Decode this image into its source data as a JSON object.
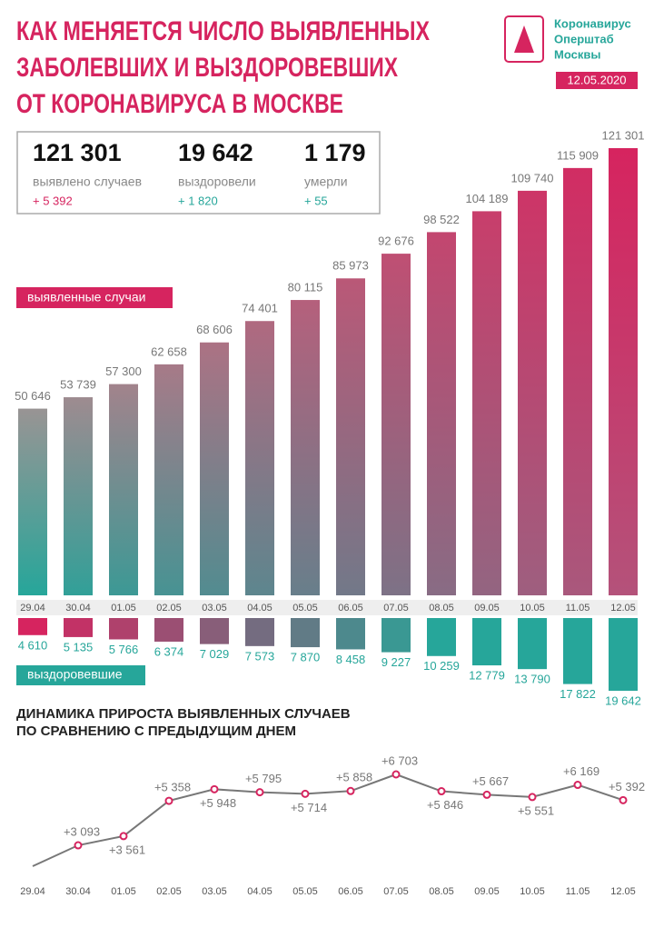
{
  "header": {
    "title": [
      "КАК МЕНЯЕТСЯ ЧИСЛО ВЫЯВЛЕННЫХ",
      "ЗАБОЛЕВШИХ И ВЫЗДОРОВЕВШИХ",
      "ОТ КОРОНАВИРУСА В МОСКВЕ"
    ],
    "org": [
      "Коронавирус",
      "Оперштаб",
      "Москвы"
    ],
    "date": "12.05.2020"
  },
  "stats": [
    {
      "value": "121 301",
      "caption": "выявлено случаев",
      "delta": "+ 5 392"
    },
    {
      "value": "19 642",
      "caption": "выздоровели",
      "delta": "+ 1 820"
    },
    {
      "value": "1 179",
      "caption": "умерли",
      "delta": "+ 55"
    }
  ],
  "chart_data": [
    {
      "type": "bar",
      "categories": [
        "29.04",
        "30.04",
        "01.05",
        "02.05",
        "03.05",
        "04.05",
        "05.05",
        "06.05",
        "07.05",
        "08.05",
        "09.05",
        "10.05",
        "11.05",
        "12.05"
      ],
      "series": [
        {
          "name": "выявленные случаи",
          "color": "#d6245f",
          "values": [
            50646,
            53739,
            57300,
            62658,
            68606,
            74401,
            80115,
            85973,
            92676,
            98522,
            104189,
            109740,
            115909,
            121301
          ],
          "value_labels": [
            "50 646",
            "53 739",
            "57 300",
            "62 658",
            "68 606",
            "74 401",
            "80 115",
            "85 973",
            "92 676",
            "98 522",
            "104 189",
            "109 740",
            "115 909",
            "121 301"
          ]
        },
        {
          "name": "выздоровевшие",
          "color": "#26a69a",
          "values": [
            4610,
            5135,
            5766,
            6374,
            7029,
            7573,
            7870,
            8458,
            9227,
            10259,
            12779,
            13790,
            17822,
            19642
          ],
          "value_labels": [
            "4 610",
            "5 135",
            "5 766",
            "6 374",
            "7 029",
            "7 573",
            "7 870",
            "8 458",
            "9 227",
            "10 259",
            "12 779",
            "13 790",
            "17 822",
            "19 642"
          ]
        }
      ]
    },
    {
      "type": "line",
      "title": [
        "ДИНАМИКА ПРИРОСТА ВЫЯВЛЕННЫХ СЛУЧАЕВ",
        "ПО СРАВНЕНИЮ С ПРЕДЫДУЩИМ ДНЕМ"
      ],
      "color": "#d6245f",
      "categories": [
        "29.04",
        "30.04",
        "01.05",
        "02.05",
        "03.05",
        "04.05",
        "05.05",
        "06.05",
        "07.05",
        "08.05",
        "09.05",
        "10.05",
        "11.05",
        "12.05"
      ],
      "values": [
        2030,
        3093,
        3561,
        5358,
        5948,
        5795,
        5714,
        5858,
        6703,
        5846,
        5667,
        5551,
        6169,
        5392
      ],
      "value_labels": [
        null,
        "+3 093",
        "+3 561",
        "+5 358",
        "+5 948",
        "+5 795",
        "+5 714",
        "+5 858",
        "+6 703",
        "+5 846",
        "+5 667",
        "+5 551",
        "+6 169",
        "+5 392"
      ]
    }
  ]
}
